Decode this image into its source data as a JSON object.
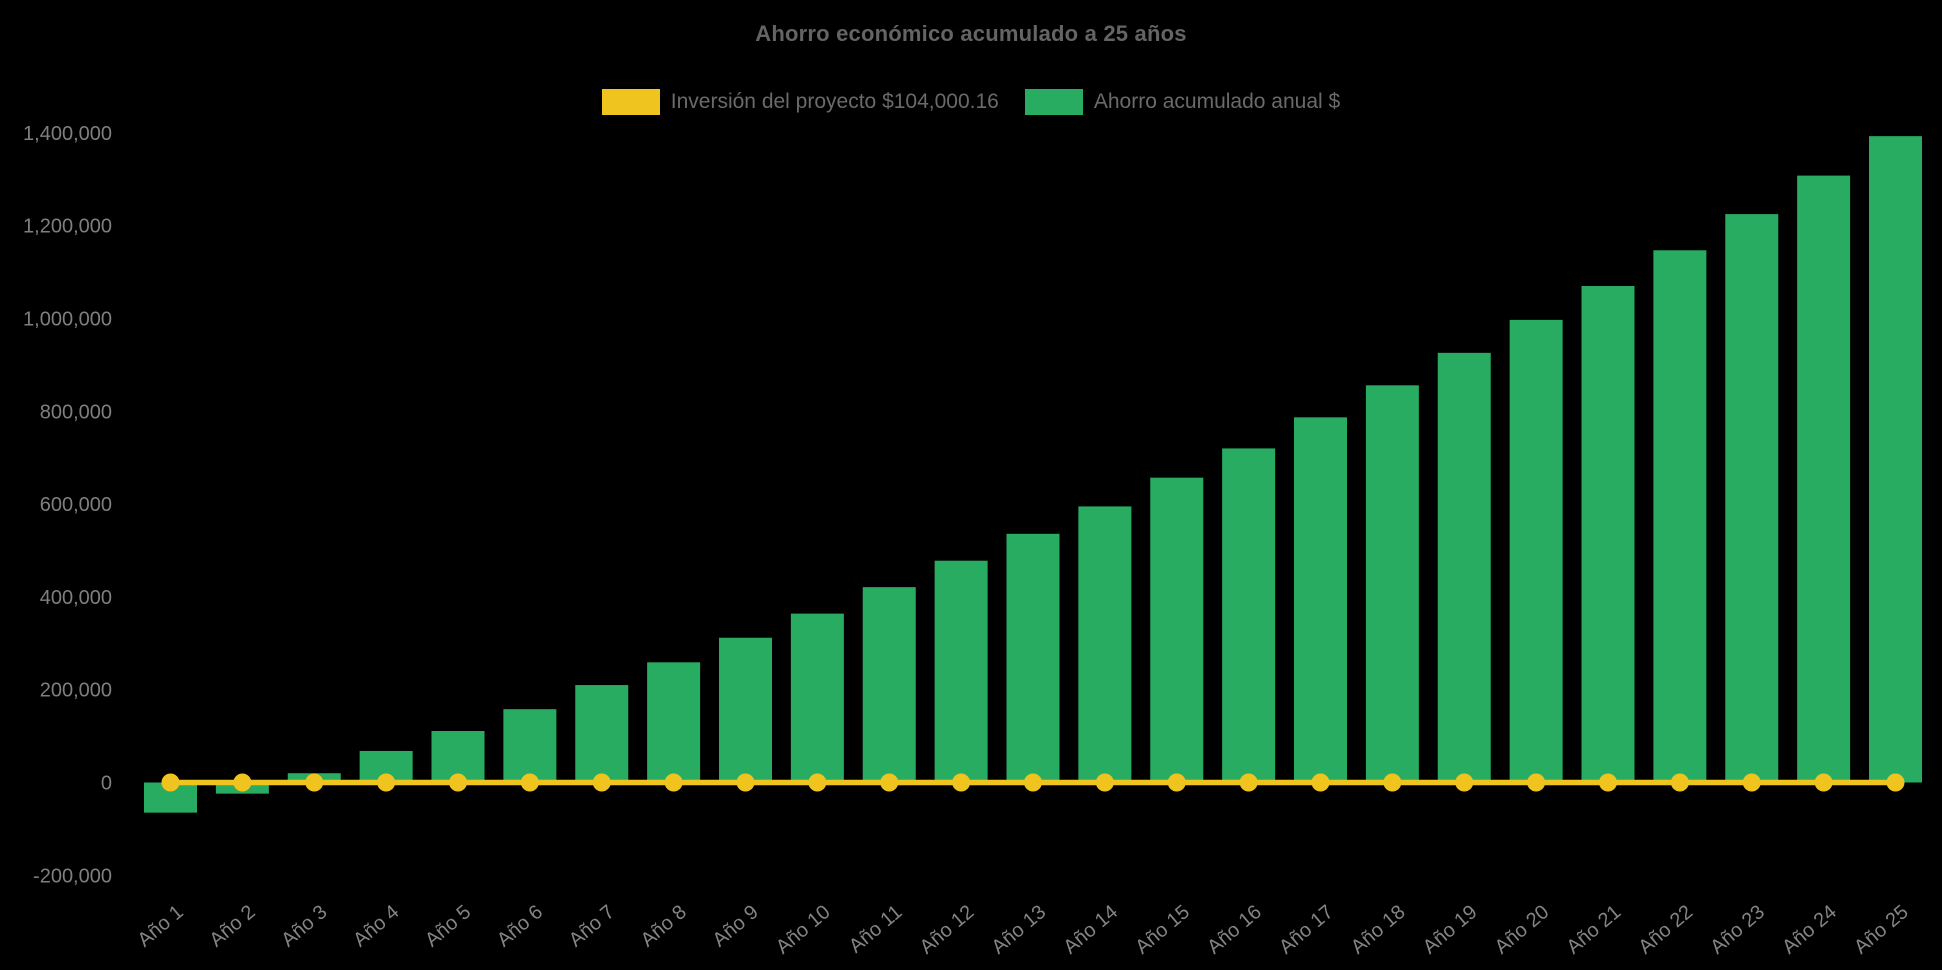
{
  "chart_data": {
    "type": "bar",
    "title": "Ahorro económico acumulado a 25 años",
    "categories": [
      "Año 1",
      "Año 2",
      "Año 3",
      "Año 4",
      "Año 5",
      "Año 6",
      "Año 7",
      "Año 8",
      "Año 9",
      "Año 10",
      "Año 11",
      "Año 12",
      "Año 13",
      "Año 14",
      "Año 15",
      "Año 16",
      "Año 17",
      "Año 18",
      "Año 19",
      "Año 20",
      "Año 21",
      "Año 22",
      "Año 23",
      "Año 24",
      "Año 25"
    ],
    "series": [
      {
        "name": "Inversión del proyecto $104,000.16",
        "type": "line",
        "color": "#F0C41E",
        "marker": "circle",
        "values": [
          0,
          0,
          0,
          0,
          0,
          0,
          0,
          0,
          0,
          0,
          0,
          0,
          0,
          0,
          0,
          0,
          0,
          0,
          0,
          0,
          0,
          0,
          0,
          0,
          0
        ]
      },
      {
        "name": "Ahorro acumulado anual $",
        "type": "bar",
        "color": "#28AC62",
        "values": [
          -65000,
          -24000,
          20000,
          68000,
          111000,
          158000,
          210000,
          259000,
          312000,
          364000,
          421000,
          478000,
          536000,
          595000,
          657000,
          720000,
          787000,
          856000,
          926000,
          997000,
          1070000,
          1147000,
          1225000,
          1308000,
          1393000
        ]
      }
    ],
    "y_ticks": {
      "labels": [
        "1,400,000",
        "1,200,000",
        "1,000,000",
        "800,000",
        "600,000",
        "400,000",
        "200,000",
        "0",
        "-200,000"
      ],
      "values": [
        1400000,
        1200000,
        1000000,
        800000,
        600000,
        400000,
        200000,
        0,
        -200000
      ]
    },
    "ylim": [
      -200000,
      1400000
    ],
    "xlabel": "",
    "ylabel": "",
    "grid": false,
    "legend_position": "top",
    "background": "#000000",
    "text_colors": {
      "title": "#646464",
      "legend": "#6A6A6A",
      "y_ticks": "#7F7F7F",
      "x_ticks": "#848484"
    }
  }
}
